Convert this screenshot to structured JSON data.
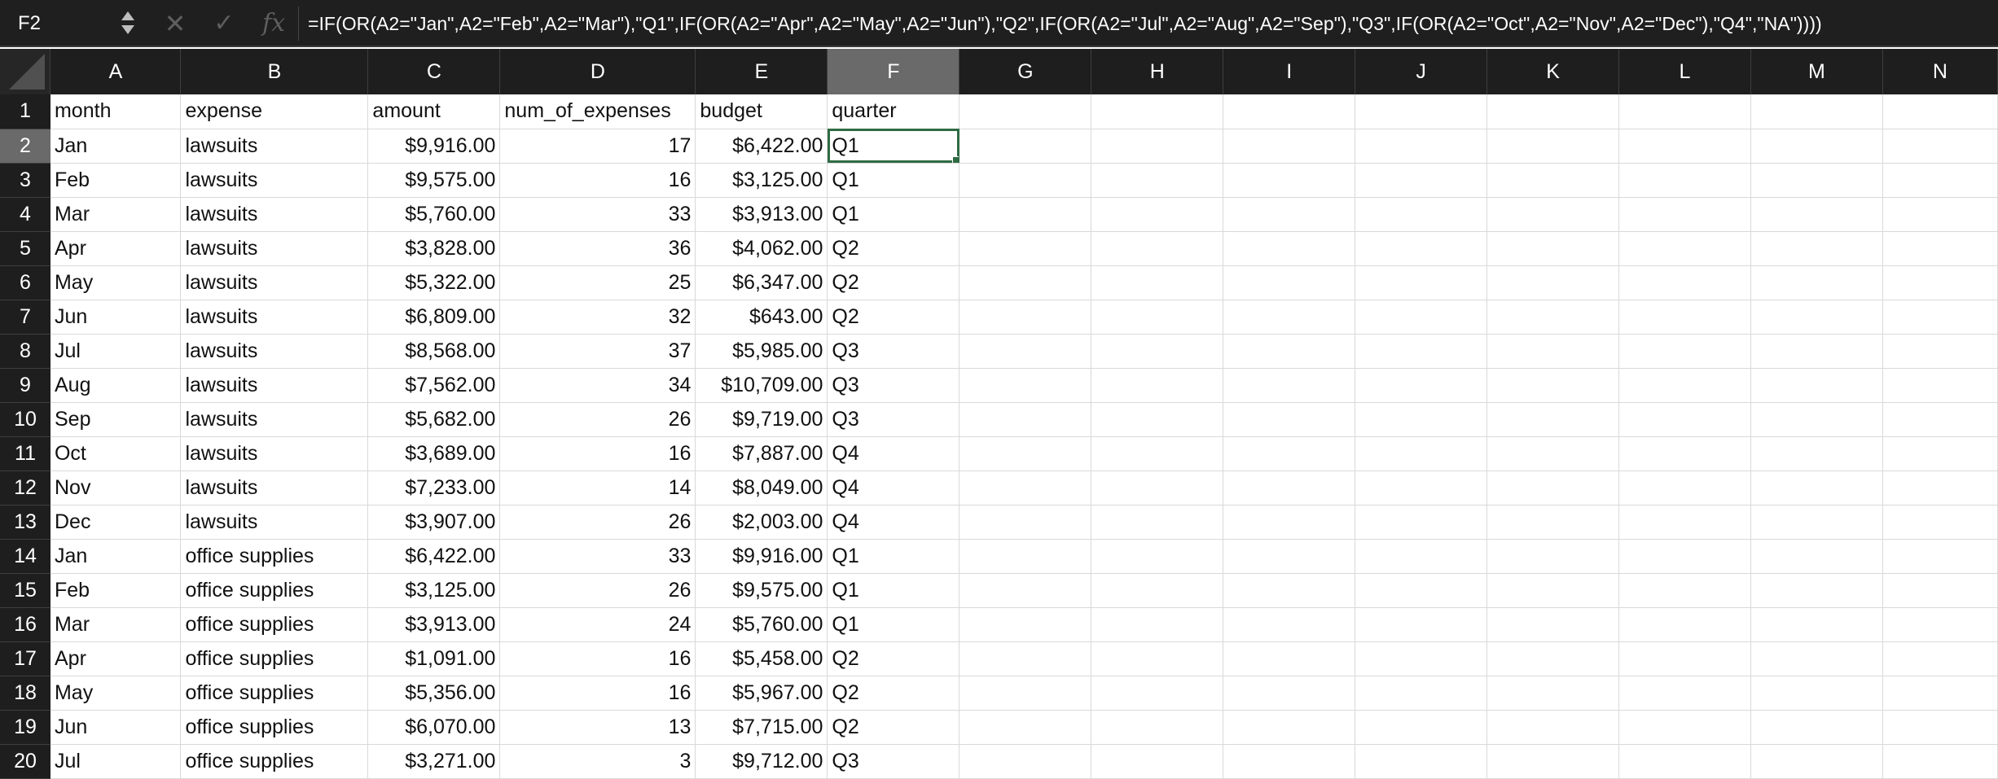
{
  "name_box": "F2",
  "formula": "=IF(OR(A2=\"Jan\",A2=\"Feb\",A2=\"Mar\"),\"Q1\",IF(OR(A2=\"Apr\",A2=\"May\",A2=\"Jun\"),\"Q2\",IF(OR(A2=\"Jul\",A2=\"Aug\",A2=\"Sep\"),\"Q3\",IF(OR(A2=\"Oct\",A2=\"Nov\",A2=\"Dec\"),\"Q4\",\"NA\"))))",
  "icons": {
    "cancel": "cancel-x-icon",
    "enter": "checkmark-icon",
    "fx": "function-fx-icon"
  },
  "selected_cell": {
    "column": "F",
    "row": "2"
  },
  "columns": [
    "A",
    "B",
    "C",
    "D",
    "E",
    "F",
    "G",
    "H",
    "I",
    "J",
    "K",
    "L",
    "M",
    "N"
  ],
  "rows": [
    {
      "n": "1",
      "cells": [
        "month",
        "expense",
        "amount",
        "num_of_expenses",
        "budget",
        "quarter"
      ]
    },
    {
      "n": "2",
      "cells": [
        "Jan",
        "lawsuits",
        "$9,916.00",
        "17",
        "$6,422.00",
        "Q1"
      ]
    },
    {
      "n": "3",
      "cells": [
        "Feb",
        "lawsuits",
        "$9,575.00",
        "16",
        "$3,125.00",
        "Q1"
      ]
    },
    {
      "n": "4",
      "cells": [
        "Mar",
        "lawsuits",
        "$5,760.00",
        "33",
        "$3,913.00",
        "Q1"
      ]
    },
    {
      "n": "5",
      "cells": [
        "Apr",
        "lawsuits",
        "$3,828.00",
        "36",
        "$4,062.00",
        "Q2"
      ]
    },
    {
      "n": "6",
      "cells": [
        "May",
        "lawsuits",
        "$5,322.00",
        "25",
        "$6,347.00",
        "Q2"
      ]
    },
    {
      "n": "7",
      "cells": [
        "Jun",
        "lawsuits",
        "$6,809.00",
        "32",
        "$643.00",
        "Q2"
      ]
    },
    {
      "n": "8",
      "cells": [
        "Jul",
        "lawsuits",
        "$8,568.00",
        "37",
        "$5,985.00",
        "Q3"
      ]
    },
    {
      "n": "9",
      "cells": [
        "Aug",
        "lawsuits",
        "$7,562.00",
        "34",
        "$10,709.00",
        "Q3"
      ]
    },
    {
      "n": "10",
      "cells": [
        "Sep",
        "lawsuits",
        "$5,682.00",
        "26",
        "$9,719.00",
        "Q3"
      ]
    },
    {
      "n": "11",
      "cells": [
        "Oct",
        "lawsuits",
        "$3,689.00",
        "16",
        "$7,887.00",
        "Q4"
      ]
    },
    {
      "n": "12",
      "cells": [
        "Nov",
        "lawsuits",
        "$7,233.00",
        "14",
        "$8,049.00",
        "Q4"
      ]
    },
    {
      "n": "13",
      "cells": [
        "Dec",
        "lawsuits",
        "$3,907.00",
        "26",
        "$2,003.00",
        "Q4"
      ]
    },
    {
      "n": "14",
      "cells": [
        "Jan",
        "office supplies",
        "$6,422.00",
        "33",
        "$9,916.00",
        "Q1"
      ]
    },
    {
      "n": "15",
      "cells": [
        "Feb",
        "office supplies",
        "$3,125.00",
        "26",
        "$9,575.00",
        "Q1"
      ]
    },
    {
      "n": "16",
      "cells": [
        "Mar",
        "office supplies",
        "$3,913.00",
        "24",
        "$5,760.00",
        "Q1"
      ]
    },
    {
      "n": "17",
      "cells": [
        "Apr",
        "office supplies",
        "$1,091.00",
        "16",
        "$5,458.00",
        "Q2"
      ]
    },
    {
      "n": "18",
      "cells": [
        "May",
        "office supplies",
        "$5,356.00",
        "16",
        "$5,967.00",
        "Q2"
      ]
    },
    {
      "n": "19",
      "cells": [
        "Jun",
        "office supplies",
        "$6,070.00",
        "13",
        "$7,715.00",
        "Q2"
      ]
    },
    {
      "n": "20",
      "cells": [
        "Jul",
        "office supplies",
        "$3,271.00",
        "3",
        "$9,712.00",
        "Q3"
      ]
    }
  ]
}
